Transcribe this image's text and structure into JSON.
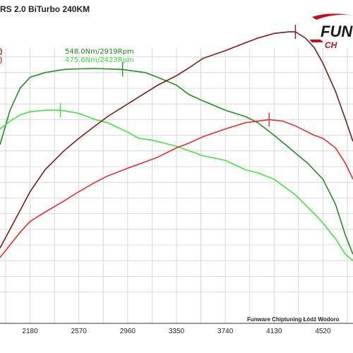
{
  "header": {
    "title": "RS 2.0 BiTurbo 240KM"
  },
  "logo": {
    "top_text": "FUN",
    "bottom_text": "CH"
  },
  "legend": {
    "entries": [
      {
        "text": "548.0Nm/2919Rpm",
        "color": "#1a8a1a"
      },
      {
        "text": "475.6Nm/2423Rpm",
        "color": "#33e033"
      }
    ]
  },
  "footer": {
    "credit": "Funware Chiptuning Łódź Wodoro"
  },
  "colors": {
    "torque_tuned": "#1f8f1f",
    "torque_stock": "#3ee63e",
    "power_tuned": "#7a1a1a",
    "power_stock": "#ee2a2a",
    "grid": "#d0d0d0",
    "axis": "#333333",
    "logo_red": "#c0121c"
  },
  "chart_data": {
    "type": "line",
    "title": "RS 2.0 BiTurbo 240KM",
    "xlabel": "",
    "ylabel": "",
    "grid": true,
    "xlim": [
      1940,
      4760
    ],
    "ylim": [
      0,
      100
    ],
    "x_ticks": [
      "2180",
      "2570",
      "2960",
      "3350",
      "3740",
      "4130",
      "4520"
    ],
    "x_tick_values": [
      2180,
      2570,
      2960,
      3350,
      3740,
      4130,
      4520
    ],
    "series": [
      {
        "key": "torque_tuned",
        "peak_label": "548.0Nm/2919Rpm",
        "peak_x": 2919,
        "peak_y": 81,
        "points": [
          [
            1940,
            57
          ],
          [
            2020,
            68
          ],
          [
            2100,
            75
          ],
          [
            2180,
            78.5
          ],
          [
            2300,
            80
          ],
          [
            2450,
            81
          ],
          [
            2570,
            81.2
          ],
          [
            2700,
            81.3
          ],
          [
            2919,
            81
          ],
          [
            3100,
            80
          ],
          [
            3200,
            78.5
          ],
          [
            3350,
            76
          ],
          [
            3450,
            73
          ],
          [
            3560,
            71
          ],
          [
            3740,
            68
          ],
          [
            3900,
            66
          ],
          [
            4000,
            64
          ],
          [
            4130,
            60
          ],
          [
            4250,
            56
          ],
          [
            4400,
            51
          ],
          [
            4520,
            46
          ],
          [
            4620,
            38
          ],
          [
            4700,
            28
          ],
          [
            4760,
            22
          ]
        ]
      },
      {
        "key": "torque_stock",
        "peak_label": "475.6Nm/2423Rpm",
        "peak_x": 2423,
        "peak_y": 68,
        "points": [
          [
            1940,
            62
          ],
          [
            2020,
            64.5
          ],
          [
            2100,
            66.5
          ],
          [
            2180,
            67.5
          ],
          [
            2300,
            68
          ],
          [
            2423,
            68
          ],
          [
            2570,
            67
          ],
          [
            2700,
            65
          ],
          [
            2800,
            64
          ],
          [
            2960,
            61
          ],
          [
            3050,
            59
          ],
          [
            3150,
            58.5
          ],
          [
            3350,
            56.5
          ],
          [
            3560,
            53.5
          ],
          [
            3740,
            52
          ],
          [
            3900,
            49
          ],
          [
            4000,
            48
          ],
          [
            4130,
            46
          ],
          [
            4300,
            41
          ],
          [
            4450,
            35
          ],
          [
            4520,
            32
          ],
          [
            4620,
            27
          ],
          [
            4700,
            22
          ],
          [
            4760,
            20
          ]
        ]
      },
      {
        "key": "power_tuned",
        "peak_label": "",
        "peak_x": 4300,
        "peak_y": 93,
        "points": [
          [
            1940,
            24
          ],
          [
            2020,
            30
          ],
          [
            2100,
            36
          ],
          [
            2180,
            42
          ],
          [
            2300,
            49
          ],
          [
            2450,
            55
          ],
          [
            2570,
            59
          ],
          [
            2700,
            63
          ],
          [
            2800,
            66
          ],
          [
            2960,
            70
          ],
          [
            3100,
            73.5
          ],
          [
            3200,
            76
          ],
          [
            3350,
            79
          ],
          [
            3450,
            81.5
          ],
          [
            3560,
            84.5
          ],
          [
            3740,
            87
          ],
          [
            3900,
            89.5
          ],
          [
            4000,
            91
          ],
          [
            4130,
            92.5
          ],
          [
            4250,
            93
          ],
          [
            4300,
            93
          ],
          [
            4380,
            91
          ],
          [
            4450,
            88
          ],
          [
            4520,
            83
          ],
          [
            4620,
            74
          ],
          [
            4700,
            65
          ],
          [
            4760,
            58
          ]
        ]
      },
      {
        "key": "power_stock",
        "peak_label": "",
        "peak_x": 4090,
        "peak_y": 65,
        "points": [
          [
            1940,
            21
          ],
          [
            2020,
            25
          ],
          [
            2100,
            29
          ],
          [
            2180,
            32.5
          ],
          [
            2300,
            35.5
          ],
          [
            2450,
            39
          ],
          [
            2570,
            42
          ],
          [
            2700,
            45
          ],
          [
            2800,
            47
          ],
          [
            2960,
            49.5
          ],
          [
            3100,
            51.5
          ],
          [
            3200,
            53
          ],
          [
            3350,
            56
          ],
          [
            3450,
            57.5
          ],
          [
            3560,
            59.5
          ],
          [
            3740,
            62
          ],
          [
            3900,
            64
          ],
          [
            4000,
            64.5
          ],
          [
            4090,
            65
          ],
          [
            4200,
            64.5
          ],
          [
            4300,
            63
          ],
          [
            4450,
            60
          ],
          [
            4520,
            59
          ],
          [
            4620,
            56
          ],
          [
            4700,
            51
          ],
          [
            4760,
            46
          ]
        ]
      }
    ]
  }
}
